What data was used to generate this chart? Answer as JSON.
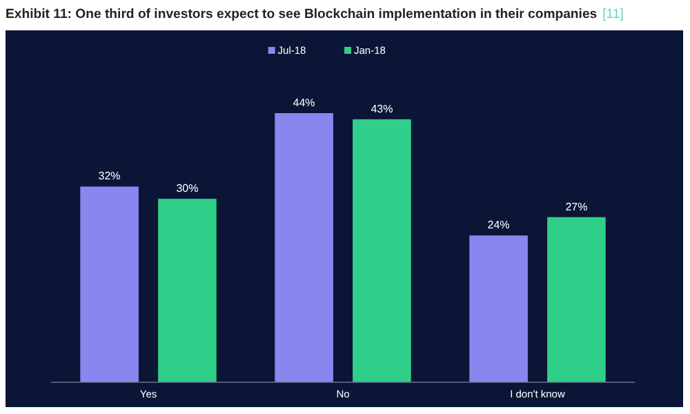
{
  "chart_data": {
    "type": "bar",
    "title": "Exhibit 11: One third of investors expect to see Blockchain implementation in their companies",
    "subtitle": "[11]",
    "categories": [
      "Yes",
      "No",
      "I don't know"
    ],
    "series": [
      {
        "name": "Jul-18",
        "color": "#8a86f0",
        "values": [
          32,
          44,
          24
        ],
        "value_labels": [
          "32%",
          "44%",
          "24%"
        ]
      },
      {
        "name": "Jan-18",
        "color": "#2fcf8a",
        "values": [
          30,
          43,
          27
        ],
        "value_labels": [
          "30%",
          "43%",
          "27%"
        ]
      }
    ],
    "legend": "top",
    "grid": false
  }
}
